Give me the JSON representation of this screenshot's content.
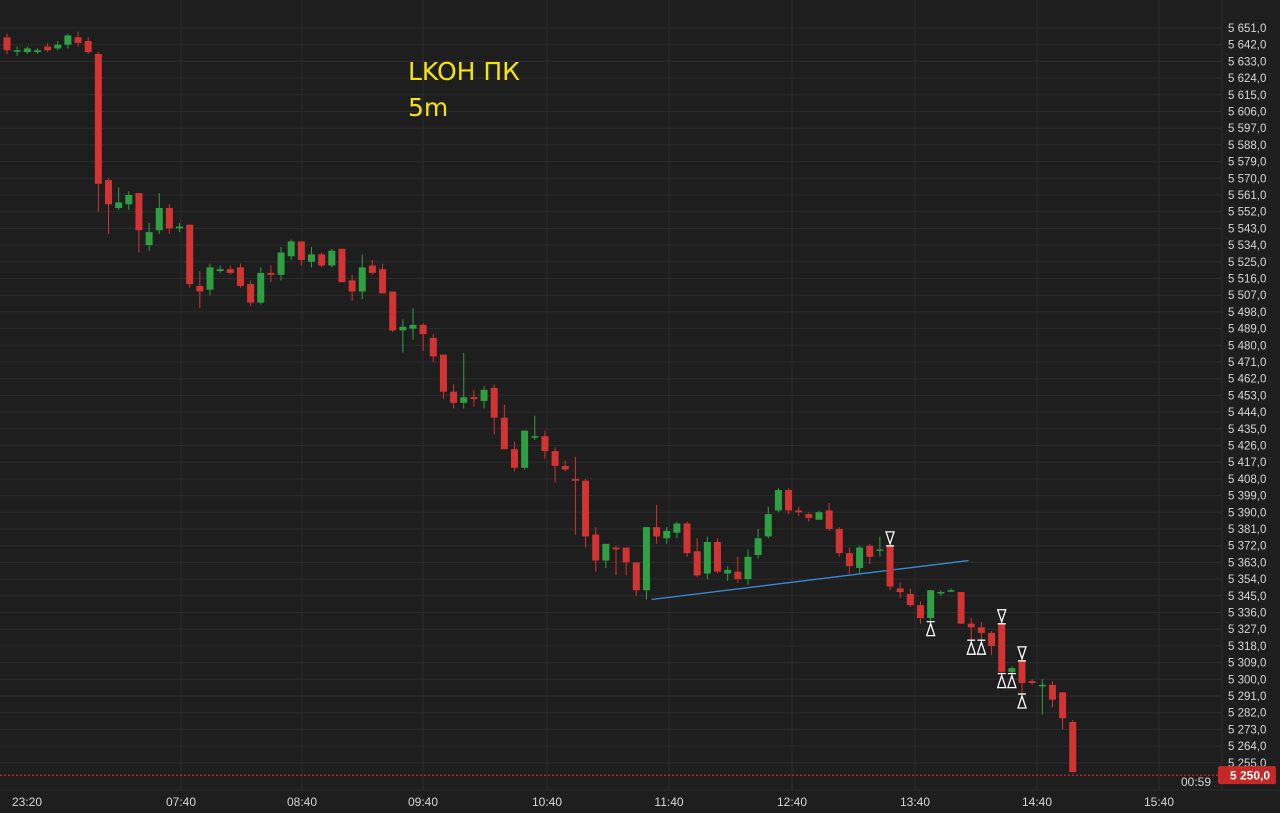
{
  "chart_data": {
    "type": "candlestick",
    "ticker": "LKOH ПК",
    "timeframe": "5m",
    "y_tick_labels": [
      "5 651,0",
      "5 642,0",
      "5 633,0",
      "5 624,0",
      "5 615,0",
      "5 606,0",
      "5 597,0",
      "5 588,0",
      "5 579,0",
      "5 570,0",
      "5 561,0",
      "5 552,0",
      "5 543,0",
      "5 534,0",
      "5 525,0",
      "5 516,0",
      "5 507,0",
      "5 498,0",
      "5 489,0",
      "5 480,0",
      "5 471,0",
      "5 462,0",
      "5 453,0",
      "5 444,0",
      "5 435,0",
      "5 426,0",
      "5 417,0",
      "5 408,0",
      "5 399,0",
      "5 390,0",
      "5 381,0",
      "5 372,0",
      "5 363,0",
      "5 354,0",
      "5 345,0",
      "5 336,0",
      "5 327,0",
      "5 318,0",
      "5 309,0",
      "5 300,0",
      "5 291,0",
      "5 282,0",
      "5 273,0",
      "5 264,0",
      "5 255,0"
    ],
    "ylim": [
      5243,
      5659
    ],
    "x_tick_labels": [
      "23:20",
      "07:40",
      "08:40",
      "09:40",
      "10:40",
      "11:40",
      "12:40",
      "13:40",
      "14:40",
      "15:40"
    ],
    "last_price_label": "5 250,0",
    "last_price": 5250,
    "countdown_label": "00:59",
    "colors": {
      "background": "#1e1e1e",
      "grid": "#2c2c2c",
      "up": "#2ea043",
      "down": "#d23333",
      "trendline": "#3b8ad8",
      "price_line": "#e53935",
      "axis_text": "#d7d7d7"
    },
    "candles": [
      {
        "o": 5646,
        "h": 5648,
        "l": 5637,
        "c": 5639
      },
      {
        "o": 5639,
        "h": 5641,
        "l": 5636,
        "c": 5639
      },
      {
        "o": 5638,
        "h": 5641,
        "l": 5637,
        "c": 5640
      },
      {
        "o": 5638,
        "h": 5640,
        "l": 5637,
        "c": 5639
      },
      {
        "o": 5641,
        "h": 5643,
        "l": 5638,
        "c": 5639
      },
      {
        "o": 5640,
        "h": 5644,
        "l": 5639,
        "c": 5642
      },
      {
        "o": 5642,
        "h": 5648,
        "l": 5640,
        "c": 5647
      },
      {
        "o": 5646,
        "h": 5649,
        "l": 5641,
        "c": 5643
      },
      {
        "o": 5644,
        "h": 5646,
        "l": 5637,
        "c": 5638
      },
      {
        "o": 5637,
        "h": 5638,
        "l": 5552,
        "c": 5567
      },
      {
        "o": 5569,
        "h": 5570,
        "l": 5540,
        "c": 5556
      },
      {
        "o": 5554,
        "h": 5565,
        "l": 5553,
        "c": 5557
      },
      {
        "o": 5556,
        "h": 5563,
        "l": 5553,
        "c": 5561
      },
      {
        "o": 5562,
        "h": 5562,
        "l": 5530,
        "c": 5542
      },
      {
        "o": 5534,
        "h": 5546,
        "l": 5531,
        "c": 5541
      },
      {
        "o": 5542,
        "h": 5562,
        "l": 5540,
        "c": 5554
      },
      {
        "o": 5554,
        "h": 5556,
        "l": 5540,
        "c": 5543
      },
      {
        "o": 5543,
        "h": 5546,
        "l": 5541,
        "c": 5544
      },
      {
        "o": 5545,
        "h": 5545,
        "l": 5511,
        "c": 5513
      },
      {
        "o": 5512,
        "h": 5520,
        "l": 5500,
        "c": 5509
      },
      {
        "o": 5510,
        "h": 5524,
        "l": 5507,
        "c": 5522
      },
      {
        "o": 5520,
        "h": 5523,
        "l": 5519,
        "c": 5521
      },
      {
        "o": 5521,
        "h": 5523,
        "l": 5518,
        "c": 5519
      },
      {
        "o": 5522,
        "h": 5524,
        "l": 5511,
        "c": 5512
      },
      {
        "o": 5513,
        "h": 5515,
        "l": 5501,
        "c": 5503
      },
      {
        "o": 5503,
        "h": 5522,
        "l": 5502,
        "c": 5519
      },
      {
        "o": 5519,
        "h": 5523,
        "l": 5514,
        "c": 5518
      },
      {
        "o": 5518,
        "h": 5533,
        "l": 5515,
        "c": 5530
      },
      {
        "o": 5528,
        "h": 5537,
        "l": 5526,
        "c": 5536
      },
      {
        "o": 5536,
        "h": 5536,
        "l": 5523,
        "c": 5526
      },
      {
        "o": 5525,
        "h": 5533,
        "l": 5522,
        "c": 5529
      },
      {
        "o": 5529,
        "h": 5530,
        "l": 5522,
        "c": 5523
      },
      {
        "o": 5523,
        "h": 5532,
        "l": 5522,
        "c": 5531
      },
      {
        "o": 5532,
        "h": 5532,
        "l": 5515,
        "c": 5514
      },
      {
        "o": 5515,
        "h": 5518,
        "l": 5504,
        "c": 5509
      },
      {
        "o": 5509,
        "h": 5529,
        "l": 5505,
        "c": 5522
      },
      {
        "o": 5523,
        "h": 5526,
        "l": 5518,
        "c": 5519
      },
      {
        "o": 5521,
        "h": 5524,
        "l": 5508,
        "c": 5508
      },
      {
        "o": 5509,
        "h": 5509,
        "l": 5487,
        "c": 5488
      },
      {
        "o": 5488,
        "h": 5494,
        "l": 5476,
        "c": 5490
      },
      {
        "o": 5489,
        "h": 5500,
        "l": 5483,
        "c": 5491
      },
      {
        "o": 5491,
        "h": 5492,
        "l": 5477,
        "c": 5486
      },
      {
        "o": 5484,
        "h": 5486,
        "l": 5471,
        "c": 5474
      },
      {
        "o": 5475,
        "h": 5475,
        "l": 5451,
        "c": 5455
      },
      {
        "o": 5455,
        "h": 5459,
        "l": 5446,
        "c": 5449
      },
      {
        "o": 5449,
        "h": 5476,
        "l": 5446,
        "c": 5452
      },
      {
        "o": 5452,
        "h": 5456,
        "l": 5447,
        "c": 5451
      },
      {
        "o": 5450,
        "h": 5458,
        "l": 5446,
        "c": 5456
      },
      {
        "o": 5457,
        "h": 5459,
        "l": 5432,
        "c": 5441
      },
      {
        "o": 5441,
        "h": 5448,
        "l": 5424,
        "c": 5424
      },
      {
        "o": 5424,
        "h": 5428,
        "l": 5412,
        "c": 5414
      },
      {
        "o": 5414,
        "h": 5434,
        "l": 5413,
        "c": 5434
      },
      {
        "o": 5431,
        "h": 5442,
        "l": 5429,
        "c": 5431
      },
      {
        "o": 5431,
        "h": 5434,
        "l": 5419,
        "c": 5423
      },
      {
        "o": 5423,
        "h": 5425,
        "l": 5406,
        "c": 5415
      },
      {
        "o": 5415,
        "h": 5418,
        "l": 5412,
        "c": 5413
      },
      {
        "o": 5408,
        "h": 5420,
        "l": 5378,
        "c": 5407
      },
      {
        "o": 5407,
        "h": 5408,
        "l": 5371,
        "c": 5377
      },
      {
        "o": 5378,
        "h": 5382,
        "l": 5358,
        "c": 5364
      },
      {
        "o": 5364,
        "h": 5372,
        "l": 5360,
        "c": 5373
      },
      {
        "o": 5371,
        "h": 5372,
        "l": 5356,
        "c": 5370
      },
      {
        "o": 5371,
        "h": 5371,
        "l": 5356,
        "c": 5363
      },
      {
        "o": 5363,
        "h": 5363,
        "l": 5345,
        "c": 5348
      },
      {
        "o": 5348,
        "h": 5381,
        "l": 5343,
        "c": 5382
      },
      {
        "o": 5382,
        "h": 5394,
        "l": 5373,
        "c": 5377
      },
      {
        "o": 5376,
        "h": 5382,
        "l": 5373,
        "c": 5380
      },
      {
        "o": 5379,
        "h": 5385,
        "l": 5376,
        "c": 5384
      },
      {
        "o": 5384,
        "h": 5385,
        "l": 5366,
        "c": 5368
      },
      {
        "o": 5369,
        "h": 5376,
        "l": 5355,
        "c": 5356
      },
      {
        "o": 5357,
        "h": 5377,
        "l": 5354,
        "c": 5374
      },
      {
        "o": 5374,
        "h": 5376,
        "l": 5357,
        "c": 5358
      },
      {
        "o": 5357,
        "h": 5361,
        "l": 5353,
        "c": 5359
      },
      {
        "o": 5358,
        "h": 5366,
        "l": 5352,
        "c": 5354
      },
      {
        "o": 5354,
        "h": 5370,
        "l": 5351,
        "c": 5366
      },
      {
        "o": 5367,
        "h": 5381,
        "l": 5365,
        "c": 5376
      },
      {
        "o": 5377,
        "h": 5393,
        "l": 5376,
        "c": 5389
      },
      {
        "o": 5391,
        "h": 5403,
        "l": 5390,
        "c": 5402
      },
      {
        "o": 5402,
        "h": 5403,
        "l": 5389,
        "c": 5391
      },
      {
        "o": 5391,
        "h": 5393,
        "l": 5388,
        "c": 5390
      },
      {
        "o": 5389,
        "h": 5390,
        "l": 5385,
        "c": 5387
      },
      {
        "o": 5386,
        "h": 5391,
        "l": 5386,
        "c": 5390
      },
      {
        "o": 5391,
        "h": 5395,
        "l": 5380,
        "c": 5381
      },
      {
        "o": 5381,
        "h": 5382,
        "l": 5366,
        "c": 5368
      },
      {
        "o": 5368,
        "h": 5371,
        "l": 5357,
        "c": 5361
      },
      {
        "o": 5360,
        "h": 5372,
        "l": 5357,
        "c": 5371
      },
      {
        "o": 5372,
        "h": 5373,
        "l": 5362,
        "c": 5366
      },
      {
        "o": 5370,
        "h": 5377,
        "l": 5366,
        "c": 5370
      },
      {
        "o": 5372,
        "h": 5373,
        "l": 5348,
        "c": 5350
      },
      {
        "o": 5349,
        "h": 5352,
        "l": 5344,
        "c": 5347
      },
      {
        "o": 5346,
        "h": 5349,
        "l": 5339,
        "c": 5340
      },
      {
        "o": 5340,
        "h": 5342,
        "l": 5330,
        "c": 5333
      },
      {
        "o": 5333,
        "h": 5348,
        "l": 5330,
        "c": 5348
      },
      {
        "o": 5347,
        "h": 5348,
        "l": 5345,
        "c": 5347
      },
      {
        "o": 5348,
        "h": 5349,
        "l": 5347,
        "c": 5348
      },
      {
        "o": 5347,
        "h": 5347,
        "l": 5330,
        "c": 5330
      },
      {
        "o": 5330,
        "h": 5333,
        "l": 5320,
        "c": 5328
      },
      {
        "o": 5328,
        "h": 5331,
        "l": 5320,
        "c": 5325
      },
      {
        "o": 5325,
        "h": 5326,
        "l": 5313,
        "c": 5318
      },
      {
        "o": 5330,
        "h": 5331,
        "l": 5302,
        "c": 5304
      },
      {
        "o": 5304,
        "h": 5307,
        "l": 5302,
        "c": 5306
      },
      {
        "o": 5310,
        "h": 5311,
        "l": 5291,
        "c": 5298
      },
      {
        "o": 5299,
        "h": 5300,
        "l": 5297,
        "c": 5298
      },
      {
        "o": 5297,
        "h": 5300,
        "l": 5281,
        "c": 5297
      },
      {
        "o": 5297,
        "h": 5299,
        "l": 5285,
        "c": 5289
      },
      {
        "o": 5293,
        "h": 5293,
        "l": 5273,
        "c": 5279
      },
      {
        "o": 5277,
        "h": 5278,
        "l": 5250,
        "c": 5250
      }
    ],
    "trendline": [
      {
        "index": 64,
        "price": 5343
      },
      {
        "index": 91,
        "price": 5359
      }
    ],
    "buy_markers": [
      91,
      95,
      96,
      98,
      99,
      100
    ],
    "sell_markers": [
      87,
      98,
      100
    ]
  }
}
